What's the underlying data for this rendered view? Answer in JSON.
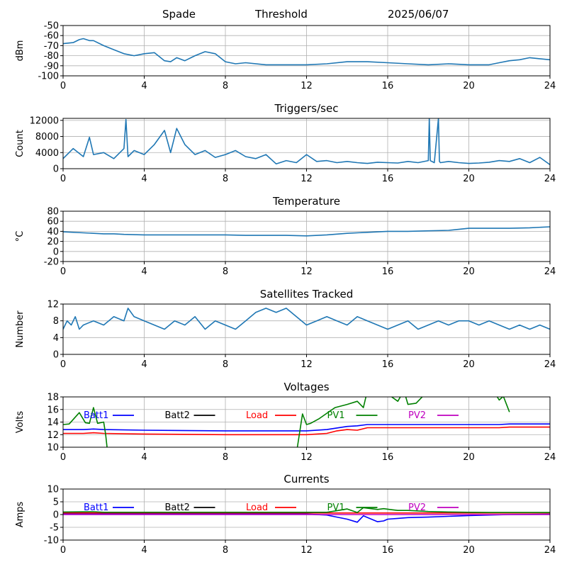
{
  "header": {
    "station": "Spade",
    "mode": "Threshold",
    "date": "2025/06/07"
  },
  "colors": {
    "line": "#1f77b4",
    "grid": "#b0b0b0",
    "batt1": "#0000ff",
    "batt2": "#000000",
    "load": "#ff0000",
    "pv1": "#008000",
    "pv2": "#bf00bf"
  },
  "chart_data": [
    {
      "type": "line",
      "title": "",
      "xlabel": "",
      "ylabel": "dBm",
      "xlim": [
        0,
        24
      ],
      "ylim": [
        -100,
        -50
      ],
      "xticks": [
        0,
        4,
        8,
        12,
        16,
        20,
        24
      ],
      "yticks": [
        -100,
        -90,
        -80,
        -70,
        -60,
        -50
      ],
      "grid": true,
      "series": [
        {
          "x": [
            0,
            0.5,
            0.8,
            1.0,
            1.3,
            1.5,
            2.0,
            2.5,
            3.0,
            3.5,
            4.0,
            4.5,
            5.0,
            5.3,
            5.6,
            6.0,
            6.5,
            7.0,
            7.5,
            8.0,
            8.5,
            9,
            10,
            11,
            12,
            13,
            14,
            15,
            16,
            17,
            18,
            19,
            20,
            21,
            21.5,
            22,
            22.5,
            23,
            23.5,
            24
          ],
          "y": [
            -68,
            -67,
            -64,
            -63,
            -65,
            -65,
            -70,
            -74,
            -78,
            -80,
            -78,
            -77,
            -85,
            -86,
            -82,
            -85,
            -80,
            -76,
            -78,
            -86,
            -88,
            -87,
            -89,
            -89,
            -89,
            -88,
            -86,
            -86,
            -87,
            -88,
            -89,
            -88,
            -89,
            -89,
            -87,
            -85,
            -84,
            -82,
            -83,
            -84
          ]
        }
      ]
    },
    {
      "type": "line",
      "title": "Triggers/sec",
      "xlabel": "",
      "ylabel": "Count",
      "xlim": [
        0,
        24
      ],
      "ylim": [
        0,
        12500
      ],
      "xticks": [
        0,
        4,
        8,
        12,
        16,
        20,
        24
      ],
      "yticks": [
        0,
        4000,
        8000,
        12000
      ],
      "grid": true,
      "series": [
        {
          "x": [
            0,
            0.5,
            1,
            1.3,
            1.5,
            2,
            2.5,
            3,
            3.1,
            3.2,
            3.5,
            4,
            4.5,
            5,
            5.3,
            5.6,
            6,
            6.5,
            7,
            7.5,
            8,
            8.5,
            9,
            9.5,
            10,
            10.5,
            11,
            11.5,
            12,
            12.5,
            13,
            13.5,
            14,
            14.5,
            15,
            15.5,
            16,
            16.5,
            17,
            17.5,
            18,
            18.05,
            18.1,
            18.3,
            18.5,
            18.55,
            18.6,
            19,
            19.5,
            20,
            20.5,
            21,
            21.5,
            22,
            22.5,
            23,
            23.5,
            24
          ],
          "y": [
            2500,
            5000,
            3000,
            7800,
            3500,
            4000,
            2500,
            5000,
            12200,
            3000,
            4500,
            3500,
            6000,
            9500,
            4000,
            10000,
            6000,
            3500,
            4500,
            2800,
            3500,
            4500,
            3000,
            2500,
            3500,
            1200,
            2000,
            1500,
            3500,
            1800,
            2000,
            1500,
            1800,
            1500,
            1300,
            1600,
            1500,
            1400,
            1800,
            1500,
            2000,
            12500,
            2000,
            1500,
            12500,
            1800,
            1500,
            1800,
            1500,
            1300,
            1400,
            1600,
            2000,
            1800,
            2500,
            1500,
            2800,
            1000
          ]
        }
      ]
    },
    {
      "type": "line",
      "title": "Temperature",
      "xlabel": "",
      "ylabel": "°C",
      "xlim": [
        0,
        24
      ],
      "ylim": [
        -20,
        80
      ],
      "xticks": [
        0,
        4,
        8,
        12,
        16,
        20,
        24
      ],
      "yticks": [
        -20,
        0,
        20,
        40,
        60,
        80
      ],
      "grid": true,
      "series": [
        {
          "x": [
            0,
            1,
            1.5,
            2,
            2.5,
            3,
            4,
            5,
            6,
            7,
            8,
            9,
            10,
            11,
            12,
            13,
            14,
            15,
            16,
            17,
            18,
            19,
            19.5,
            20,
            21,
            22,
            23,
            24
          ],
          "y": [
            39,
            37,
            36,
            35,
            35,
            34,
            33,
            33,
            33,
            33,
            33,
            32,
            32,
            32,
            31,
            33,
            36,
            38,
            40,
            40,
            41,
            42,
            44,
            46,
            46,
            46,
            47,
            49
          ]
        }
      ]
    },
    {
      "type": "line",
      "title": "Satellites Tracked",
      "xlabel": "",
      "ylabel": "Number",
      "xlim": [
        0,
        24
      ],
      "ylim": [
        0,
        12
      ],
      "xticks": [
        0,
        4,
        8,
        12,
        16,
        20,
        24
      ],
      "yticks": [
        0,
        4,
        8,
        12
      ],
      "grid": true,
      "series": [
        {
          "x": [
            0,
            0.2,
            0.4,
            0.6,
            0.8,
            1,
            1.5,
            2,
            2.5,
            3,
            3.2,
            3.5,
            4,
            4.5,
            5,
            5.5,
            6,
            6.5,
            7,
            7.5,
            8,
            8.5,
            9,
            9.5,
            10,
            10.5,
            11,
            11.5,
            12,
            12.5,
            13,
            13.5,
            14,
            14.5,
            15,
            15.5,
            16,
            16.5,
            17,
            17.5,
            18,
            18.5,
            19,
            19.5,
            20,
            20.5,
            21,
            21.5,
            22,
            22.5,
            23,
            23.5,
            24
          ],
          "y": [
            6,
            8,
            7,
            9,
            6,
            7,
            8,
            7,
            9,
            8,
            11,
            9,
            8,
            7,
            6,
            8,
            7,
            9,
            6,
            8,
            7,
            6,
            8,
            10,
            11,
            10,
            11,
            9,
            7,
            8,
            9,
            8,
            7,
            9,
            8,
            7,
            6,
            7,
            8,
            6,
            7,
            8,
            7,
            8,
            8,
            7,
            8,
            7,
            6,
            7,
            6,
            7,
            6
          ]
        }
      ]
    },
    {
      "type": "line",
      "title": "Voltages",
      "xlabel": "",
      "ylabel": "Volts",
      "xlim": [
        0,
        24
      ],
      "ylim": [
        10,
        18
      ],
      "xticks": [
        0,
        4,
        8,
        12,
        16,
        20,
        24
      ],
      "yticks": [
        10,
        12,
        14,
        16,
        18
      ],
      "grid": true,
      "legend": "top (single row)",
      "series": [
        {
          "name": "Batt1",
          "color": "#0000ff",
          "x": [
            0,
            1,
            1.5,
            2,
            4,
            8,
            12,
            13,
            14,
            14.5,
            15,
            16,
            17,
            18,
            20,
            21.5,
            22,
            24
          ],
          "y": [
            12.8,
            12.8,
            12.9,
            12.8,
            12.7,
            12.6,
            12.6,
            12.8,
            13.3,
            13.4,
            13.6,
            13.6,
            13.6,
            13.6,
            13.6,
            13.6,
            13.7,
            13.7
          ]
        },
        {
          "name": "Batt2",
          "color": "#000000",
          "x": [],
          "y": []
        },
        {
          "name": "Load",
          "color": "#ff0000",
          "x": [
            0,
            1,
            1.5,
            2,
            4,
            8,
            12,
            13,
            13.5,
            14,
            14.5,
            15,
            16,
            17,
            18,
            20,
            21.5,
            22,
            24
          ],
          "y": [
            12.2,
            12.2,
            12.3,
            12.2,
            12.1,
            12.0,
            12.0,
            12.2,
            12.6,
            12.8,
            12.7,
            13.1,
            13.1,
            13.1,
            13.1,
            13.1,
            13.1,
            13.2,
            13.2
          ]
        },
        {
          "name": "PV1",
          "color": "#008000",
          "x": [
            0,
            0.3,
            0.8,
            1.1,
            1.3,
            1.5,
            1.7,
            2.0,
            2.1,
            2.2,
            11.5,
            11.8,
            12,
            12.2,
            12.6,
            13,
            13.4,
            14,
            14.5,
            14.8,
            15.0,
            15.5,
            16,
            16.2,
            16.5,
            16.8,
            17.0,
            17.4,
            18,
            21.2,
            21.5,
            21.7,
            22
          ],
          "y": [
            13.6,
            13.7,
            15.5,
            13.9,
            13.8,
            16.3,
            13.8,
            14.0,
            12.0,
            9.0,
            9.0,
            15.3,
            13.6,
            13.8,
            14.5,
            15.4,
            16.3,
            16.8,
            17.3,
            16.3,
            19.0,
            19.0,
            19.0,
            18.0,
            17.3,
            19.0,
            16.8,
            17.0,
            19.0,
            19.0,
            17.5,
            18.1,
            15.6
          ]
        },
        {
          "name": "PV2",
          "color": "#bf00bf",
          "x": [],
          "y": []
        }
      ]
    },
    {
      "type": "line",
      "title": "Currents",
      "xlabel": "",
      "ylabel": "Amps",
      "xlim": [
        0,
        24
      ],
      "ylim": [
        -10,
        10
      ],
      "xticks": [
        0,
        4,
        8,
        12,
        16,
        20,
        24
      ],
      "yticks": [
        -10,
        -5,
        0,
        5,
        10
      ],
      "grid": true,
      "legend": "top (single row)",
      "series": [
        {
          "name": "Batt1",
          "color": "#0000ff",
          "x": [
            0,
            12,
            13,
            13.5,
            14,
            14.5,
            14.8,
            15.5,
            15.8,
            16,
            16.5,
            17,
            18,
            19,
            20,
            21,
            22,
            24
          ],
          "y": [
            0.2,
            0.2,
            -0.2,
            -1,
            -1.8,
            -3,
            -0.5,
            -2.8,
            -2.5,
            -1.8,
            -1.5,
            -1.2,
            -1,
            -0.7,
            -0.4,
            -0.2,
            0,
            0.1
          ]
        },
        {
          "name": "Batt2",
          "color": "#000000",
          "x": [],
          "y": []
        },
        {
          "name": "Load",
          "color": "#ff0000",
          "x": [
            0,
            4,
            8,
            12,
            16,
            20,
            24
          ],
          "y": [
            0.6,
            0.6,
            0.6,
            0.6,
            0.6,
            0.6,
            0.6
          ]
        },
        {
          "name": "PV1",
          "color": "#008000",
          "x": [
            0,
            1.5,
            2,
            12,
            13,
            13.5,
            14,
            14.5,
            14.8,
            15.5,
            15.8,
            16.2,
            16.5,
            17,
            18,
            19,
            20,
            21,
            22,
            24
          ],
          "y": [
            1.0,
            1.1,
            0.9,
            0.9,
            0.9,
            1.5,
            2.2,
            0.8,
            2.7,
            2.0,
            2.3,
            1.9,
            1.6,
            1.6,
            1.2,
            1.0,
            0.9,
            0.8,
            0.8,
            0.8
          ]
        },
        {
          "name": "PV2",
          "color": "#bf00bf",
          "x": [
            0,
            24
          ],
          "y": [
            0,
            0
          ]
        }
      ]
    }
  ]
}
